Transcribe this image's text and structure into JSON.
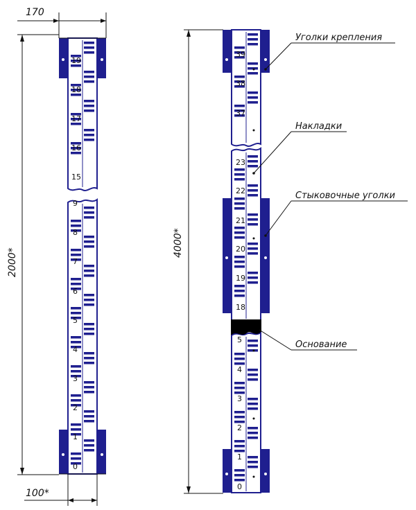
{
  "dimensions": {
    "width_top": "170",
    "height_left": "2000*",
    "width_bottom": "100*",
    "height_right": "4000*"
  },
  "left_rod": {
    "upper_numbers": [
      "19",
      "18",
      "17",
      "16",
      "15"
    ],
    "lower_numbers": [
      "9",
      "8",
      "7",
      "6",
      "5",
      "4",
      "3",
      "2",
      "1",
      "0"
    ]
  },
  "right_rod": {
    "top_numbers": [
      "39",
      "38",
      "37"
    ],
    "mid_numbers": [
      "23",
      "22",
      "21",
      "20",
      "19",
      "18"
    ],
    "bottom_numbers": [
      "5",
      "4",
      "3",
      "2",
      "1",
      "0"
    ]
  },
  "callouts": {
    "mounting_brackets": "Уголки крепления",
    "overlays": "Накладки",
    "joint_brackets": "Стыковочные уголки",
    "base": "Основание"
  },
  "colors": {
    "blue": "#1f1f8f",
    "black": "#000000"
  }
}
